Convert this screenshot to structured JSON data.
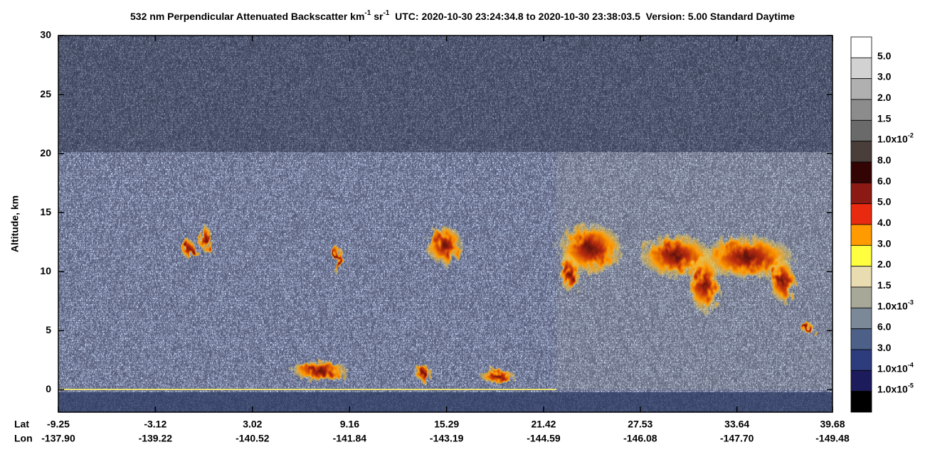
{
  "chart_data": {
    "type": "heatmap",
    "title_parts": [
      {
        "text": "532 nm Perpendicular Attenuated Backscatter km"
      },
      {
        "sup": "-1"
      },
      {
        "text": " sr"
      },
      {
        "sup": "-1"
      },
      {
        "text": "  UTC: 2020-10-30 23:24:34.8 to 2020-10-30 23:38:03.5  Version: 5.00 Standard Daytime"
      }
    ],
    "ylabel": "Altitude, km",
    "ylim": [
      -1.9,
      30
    ],
    "yticks": [
      0,
      5,
      10,
      15,
      20,
      25,
      30
    ],
    "xlabel_lat": "Lat",
    "xlabel_lon": "Lon",
    "xlim": [
      -9.25,
      39.68
    ],
    "xticks": [
      -9.25,
      -3.12,
      3.02,
      9.16,
      15.29,
      21.42,
      27.53,
      33.64,
      39.68
    ],
    "lon_labels": [
      "-137.90",
      "-139.22",
      "-140.52",
      "-141.84",
      "-143.19",
      "-144.59",
      "-146.08",
      "-147.70",
      "-149.48"
    ],
    "colorbar": {
      "colors": [
        "#ffffff",
        "#d2d2d2",
        "#b0b0b0",
        "#8c8c8c",
        "#6a6a6a",
        "#4a3e3a",
        "#330404",
        "#8b1a14",
        "#e82a10",
        "#ff9a00",
        "#ffff40",
        "#e8dcb0",
        "#a8a898",
        "#7a8898",
        "#4c6088",
        "#2c3c7c",
        "#1c1c5c",
        "#000000"
      ],
      "labels": [
        "5.0",
        "3.0",
        "2.0",
        "1.5",
        "1.0x10",
        "8.0",
        "6.0",
        "5.0",
        "4.0",
        "3.0",
        "2.0",
        "1.5",
        "1.0x10",
        "6.0",
        "3.0",
        "1.0x10",
        "1.0x10"
      ],
      "exponents": [
        null,
        null,
        null,
        null,
        "-2",
        null,
        null,
        null,
        null,
        null,
        null,
        null,
        "-3",
        null,
        null,
        "-4",
        "-5"
      ]
    }
  }
}
